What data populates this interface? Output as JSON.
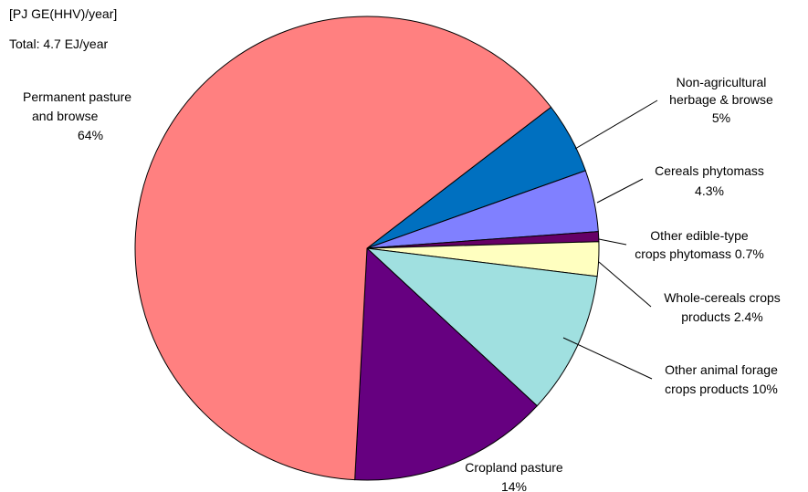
{
  "chart_data": {
    "type": "pie",
    "unit_note": "[PJ GE(HHV)/year]",
    "total_note": "Total:  4.7 EJ/year",
    "slices": [
      {
        "name": "Non-agricultural herbage & browse",
        "label_lines": [
          "Non-agricultural",
          "herbage & browse",
          "5%"
        ],
        "value": 5,
        "color": "#0070C0"
      },
      {
        "name": "Cereals phytomass",
        "label_lines": [
          "Cereals phytomass",
          "4.3%"
        ],
        "value": 4.3,
        "color": "#8080FF"
      },
      {
        "name": "Other edible-type crops phytomass",
        "label_lines": [
          "Other edible-type",
          "crops phytomass 0.7%"
        ],
        "value": 0.7,
        "color": "#660066"
      },
      {
        "name": "Whole-cereals crops products",
        "label_lines": [
          "Whole-cereals crops",
          "products 2.4%"
        ],
        "value": 2.4,
        "color": "#FFFFC0"
      },
      {
        "name": "Other animal forage crops products",
        "label_lines": [
          "Other animal forage",
          "crops products 10%"
        ],
        "value": 10,
        "color": "#A0E0E0"
      },
      {
        "name": "Cropland pasture",
        "label_lines": [
          "Cropland pasture",
          "14%"
        ],
        "value": 14,
        "color": "#660080"
      },
      {
        "name": "Permanent pasture and browse",
        "label_lines": [
          "Permanent pasture",
          "and browse",
          "64%"
        ],
        "value": 64,
        "color": "#FF8080"
      }
    ]
  }
}
